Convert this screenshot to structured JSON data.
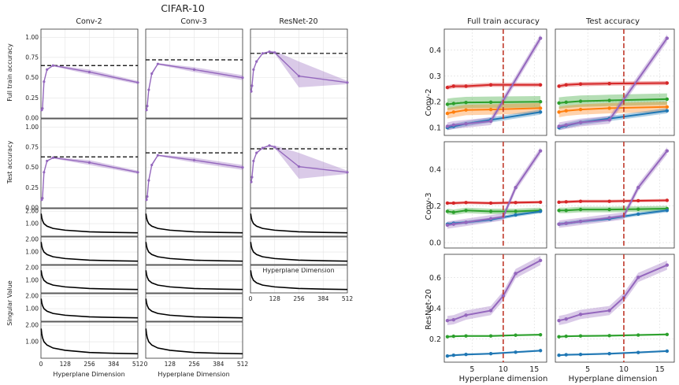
{
  "title": "CIFAR-10",
  "left_panel": {
    "columns": [
      "Conv-2",
      "Conv-3",
      "ResNet-20"
    ],
    "rows": [
      "Full train accuracy",
      "Test accuracy"
    ],
    "sv_ylabel": "Singular Value",
    "xlabel": "Hyperplane Dimension",
    "xticks": [
      "0",
      "128",
      "256",
      "384",
      "512"
    ],
    "acc_yticks": [
      "0.00",
      "0.25",
      "0.50",
      "0.75",
      "1.00"
    ],
    "sv_yticks": [
      "1.00",
      "2.00"
    ]
  },
  "right_panel": {
    "columns": [
      "Full train accuracy",
      "Test accuracy"
    ],
    "rows": [
      "Conv-2",
      "Conv-3",
      "ResNet-20"
    ],
    "xlabel": "Hyperplane dimension",
    "xticks": [
      "5",
      "10",
      "15"
    ]
  },
  "colors": {
    "purple": "#9467bd",
    "red": "#d62728",
    "green": "#2ca02c",
    "orange": "#ff7f0e",
    "blue": "#1f77b4",
    "dashed_line": "#000000",
    "vline": "#c0392b"
  },
  "chart_data": [
    {
      "type": "line",
      "name": "Accuracy vs hyperplane dimension (left grid)",
      "xlabel": "Hyperplane Dimension",
      "xlim": [
        0,
        512
      ],
      "ylim": [
        0,
        1.1
      ],
      "panels": [
        {
          "row": "Full train accuracy",
          "model": "Conv-2",
          "baseline": 0.65,
          "x": [
            4,
            8,
            16,
            32,
            64,
            256,
            512
          ],
          "y": [
            0.1,
            0.12,
            0.45,
            0.6,
            0.65,
            0.57,
            0.44
          ],
          "lo": [
            0.1,
            0.12,
            0.44,
            0.59,
            0.64,
            0.54,
            0.42
          ],
          "hi": [
            0.11,
            0.13,
            0.46,
            0.61,
            0.66,
            0.6,
            0.46
          ]
        },
        {
          "row": "Full train accuracy",
          "model": "Conv-3",
          "baseline": 0.72,
          "x": [
            4,
            8,
            16,
            32,
            64,
            256,
            512
          ],
          "y": [
            0.1,
            0.15,
            0.35,
            0.55,
            0.67,
            0.6,
            0.5
          ],
          "lo": [
            0.09,
            0.14,
            0.33,
            0.53,
            0.66,
            0.57,
            0.47
          ],
          "hi": [
            0.11,
            0.16,
            0.37,
            0.57,
            0.68,
            0.63,
            0.53
          ]
        },
        {
          "row": "Full train accuracy",
          "model": "ResNet-20",
          "baseline": 0.8,
          "x": [
            4,
            8,
            16,
            32,
            64,
            100,
            128,
            256,
            512
          ],
          "y": [
            0.33,
            0.4,
            0.6,
            0.7,
            0.8,
            0.82,
            0.81,
            0.52,
            0.44
          ],
          "lo": [
            0.32,
            0.39,
            0.59,
            0.69,
            0.79,
            0.81,
            0.8,
            0.38,
            0.42
          ],
          "hi": [
            0.34,
            0.41,
            0.61,
            0.71,
            0.81,
            0.83,
            0.83,
            0.7,
            0.46
          ]
        },
        {
          "row": "Test accuracy",
          "model": "Conv-2",
          "baseline": 0.63,
          "x": [
            4,
            8,
            16,
            32,
            64,
            256,
            512
          ],
          "y": [
            0.1,
            0.12,
            0.44,
            0.58,
            0.62,
            0.56,
            0.44
          ],
          "lo": [
            0.1,
            0.11,
            0.43,
            0.57,
            0.61,
            0.53,
            0.42
          ],
          "hi": [
            0.11,
            0.13,
            0.45,
            0.59,
            0.63,
            0.59,
            0.46
          ]
        },
        {
          "row": "Test accuracy",
          "model": "Conv-3",
          "baseline": 0.68,
          "x": [
            4,
            8,
            16,
            32,
            64,
            256,
            512
          ],
          "y": [
            0.1,
            0.14,
            0.34,
            0.53,
            0.65,
            0.59,
            0.5
          ],
          "lo": [
            0.09,
            0.13,
            0.32,
            0.51,
            0.64,
            0.56,
            0.47
          ],
          "hi": [
            0.11,
            0.15,
            0.36,
            0.55,
            0.66,
            0.62,
            0.53
          ]
        },
        {
          "row": "Test accuracy",
          "model": "ResNet-20",
          "baseline": 0.73,
          "x": [
            4,
            8,
            16,
            32,
            64,
            100,
            128,
            256,
            512
          ],
          "y": [
            0.32,
            0.38,
            0.58,
            0.68,
            0.74,
            0.77,
            0.75,
            0.51,
            0.44
          ],
          "lo": [
            0.31,
            0.37,
            0.57,
            0.67,
            0.73,
            0.76,
            0.74,
            0.36,
            0.42
          ],
          "hi": [
            0.33,
            0.39,
            0.59,
            0.69,
            0.75,
            0.78,
            0.77,
            0.68,
            0.46
          ]
        }
      ]
    },
    {
      "type": "line",
      "name": "Singular value spectra (left grid)",
      "ylabel": "Singular Value",
      "xlabel": "Hyperplane Dimension",
      "xlim": [
        0,
        512
      ],
      "ylim": [
        0,
        2.2
      ],
      "rows_per_model": {
        "Conv-2": 5,
        "Conv-3": 5,
        "ResNet-20": 3
      },
      "curve": {
        "x": [
          1,
          4,
          8,
          16,
          32,
          64,
          128,
          256,
          384,
          512
        ],
        "y": [
          1.8,
          1.5,
          1.25,
          1.0,
          0.8,
          0.62,
          0.48,
          0.35,
          0.3,
          0.27
        ]
      }
    },
    {
      "type": "line",
      "name": "Accuracy vs hyperplane dimension (right grid)",
      "xlabel": "Hyperplane dimension",
      "xlim": [
        0.5,
        17
      ],
      "vline_x": 10,
      "panels": [
        {
          "row": "Conv-2",
          "col": "Full train accuracy",
          "ylim": [
            0.07,
            0.48
          ],
          "yticks": [
            0.1,
            0.2,
            0.3,
            0.4
          ],
          "series": [
            {
              "color": "red",
              "x": [
                1,
                2,
                4,
                8,
                16
              ],
              "y": [
                0.255,
                0.26,
                0.26,
                0.265,
                0.265
              ],
              "band": 0.008
            },
            {
              "color": "green",
              "x": [
                1,
                2,
                4,
                8,
                16
              ],
              "y": [
                0.19,
                0.193,
                0.197,
                0.198,
                0.2
              ],
              "band": 0.022
            },
            {
              "color": "orange",
              "x": [
                1,
                2,
                4,
                8,
                16
              ],
              "y": [
                0.155,
                0.16,
                0.168,
                0.17,
                0.175
              ],
              "band": 0.02
            },
            {
              "color": "blue",
              "x": [
                1,
                2,
                4,
                8,
                16
              ],
              "y": [
                0.1,
                0.105,
                0.115,
                0.13,
                0.16
              ],
              "band": 0.01
            },
            {
              "color": "purple",
              "x": [
                1,
                2,
                4,
                8,
                16
              ],
              "y": [
                0.105,
                0.11,
                0.115,
                0.125,
                0.445
              ],
              "band": 0.015
            }
          ]
        },
        {
          "row": "Conv-2",
          "col": "Test accuracy",
          "ylim": [
            0.07,
            0.48
          ],
          "yticks": [
            0.1,
            0.2,
            0.3,
            0.4
          ],
          "series": [
            {
              "color": "red",
              "x": [
                1,
                2,
                4,
                8,
                16
              ],
              "y": [
                0.26,
                0.265,
                0.268,
                0.27,
                0.272
              ],
              "band": 0.008
            },
            {
              "color": "green",
              "x": [
                1,
                2,
                4,
                8,
                16
              ],
              "y": [
                0.195,
                0.198,
                0.202,
                0.205,
                0.21
              ],
              "band": 0.022
            },
            {
              "color": "orange",
              "x": [
                1,
                2,
                4,
                8,
                16
              ],
              "y": [
                0.16,
                0.165,
                0.17,
                0.175,
                0.18
              ],
              "band": 0.02
            },
            {
              "color": "blue",
              "x": [
                1,
                2,
                4,
                8,
                16
              ],
              "y": [
                0.1,
                0.108,
                0.12,
                0.135,
                0.165
              ],
              "band": 0.01
            },
            {
              "color": "purple",
              "x": [
                1,
                2,
                4,
                8,
                16
              ],
              "y": [
                0.105,
                0.11,
                0.12,
                0.13,
                0.445
              ],
              "band": 0.015
            }
          ]
        },
        {
          "row": "Conv-3",
          "col": "Full train accuracy",
          "ylim": [
            -0.03,
            0.55
          ],
          "yticks": [
            0.0,
            0.2,
            0.4
          ],
          "series": [
            {
              "color": "red",
              "x": [
                1,
                2,
                4,
                8,
                12,
                16
              ],
              "y": [
                0.215,
                0.215,
                0.218,
                0.215,
                0.218,
                0.22
              ],
              "band": 0.008
            },
            {
              "color": "green",
              "x": [
                1,
                2,
                4,
                8,
                12,
                16
              ],
              "y": [
                0.17,
                0.165,
                0.175,
                0.17,
                0.17,
                0.175
              ],
              "band": 0.015
            },
            {
              "color": "blue",
              "x": [
                1,
                2,
                4,
                8,
                12,
                16
              ],
              "y": [
                0.1,
                0.105,
                0.11,
                0.125,
                0.15,
                0.17
              ],
              "band": 0.01
            },
            {
              "color": "purple",
              "x": [
                1,
                2,
                4,
                8,
                10,
                12,
                16
              ],
              "y": [
                0.095,
                0.1,
                0.11,
                0.13,
                0.14,
                0.3,
                0.5
              ],
              "band": 0.02
            }
          ]
        },
        {
          "row": "Conv-3",
          "col": "Test accuracy",
          "ylim": [
            -0.03,
            0.55
          ],
          "yticks": [
            0.0,
            0.2,
            0.4
          ],
          "series": [
            {
              "color": "red",
              "x": [
                1,
                2,
                4,
                8,
                12,
                16
              ],
              "y": [
                0.22,
                0.222,
                0.225,
                0.225,
                0.228,
                0.23
              ],
              "band": 0.008
            },
            {
              "color": "green",
              "x": [
                1,
                2,
                4,
                8,
                12,
                16
              ],
              "y": [
                0.175,
                0.175,
                0.18,
                0.18,
                0.182,
                0.185
              ],
              "band": 0.015
            },
            {
              "color": "blue",
              "x": [
                1,
                2,
                4,
                8,
                12,
                16
              ],
              "y": [
                0.1,
                0.105,
                0.115,
                0.13,
                0.155,
                0.175
              ],
              "band": 0.01
            },
            {
              "color": "purple",
              "x": [
                1,
                2,
                4,
                8,
                10,
                12,
                16
              ],
              "y": [
                0.1,
                0.105,
                0.115,
                0.135,
                0.145,
                0.3,
                0.5
              ],
              "band": 0.02
            }
          ]
        },
        {
          "row": "ResNet-20",
          "col": "Full train accuracy",
          "ylim": [
            0.05,
            0.75
          ],
          "yticks": [
            0.2,
            0.4,
            0.6
          ],
          "series": [
            {
              "color": "green",
              "x": [
                1,
                2,
                4,
                8,
                12,
                16
              ],
              "y": [
                0.215,
                0.218,
                0.22,
                0.22,
                0.225,
                0.228
              ],
              "band": 0.006
            },
            {
              "color": "blue",
              "x": [
                1,
                2,
                4,
                8,
                12,
                16
              ],
              "y": [
                0.09,
                0.095,
                0.1,
                0.105,
                0.115,
                0.125
              ],
              "band": 0.006
            },
            {
              "color": "purple",
              "x": [
                1,
                2,
                4,
                8,
                10,
                12,
                16
              ],
              "y": [
                0.32,
                0.325,
                0.355,
                0.385,
                0.48,
                0.625,
                0.71
              ],
              "band": 0.03
            }
          ]
        },
        {
          "row": "ResNet-20",
          "col": "Test accuracy",
          "ylim": [
            0.05,
            0.75
          ],
          "yticks": [
            0.2,
            0.4,
            0.6
          ],
          "series": [
            {
              "color": "green",
              "x": [
                1,
                2,
                4,
                8,
                12,
                16
              ],
              "y": [
                0.215,
                0.218,
                0.22,
                0.222,
                0.226,
                0.23
              ],
              "band": 0.006
            },
            {
              "color": "blue",
              "x": [
                1,
                2,
                4,
                8,
                12,
                16
              ],
              "y": [
                0.095,
                0.098,
                0.1,
                0.105,
                0.113,
                0.122
              ],
              "band": 0.006
            },
            {
              "color": "purple",
              "x": [
                1,
                2,
                4,
                8,
                10,
                12,
                16
              ],
              "y": [
                0.32,
                0.33,
                0.36,
                0.385,
                0.47,
                0.6,
                0.68
              ],
              "band": 0.03
            }
          ]
        }
      ]
    }
  ]
}
